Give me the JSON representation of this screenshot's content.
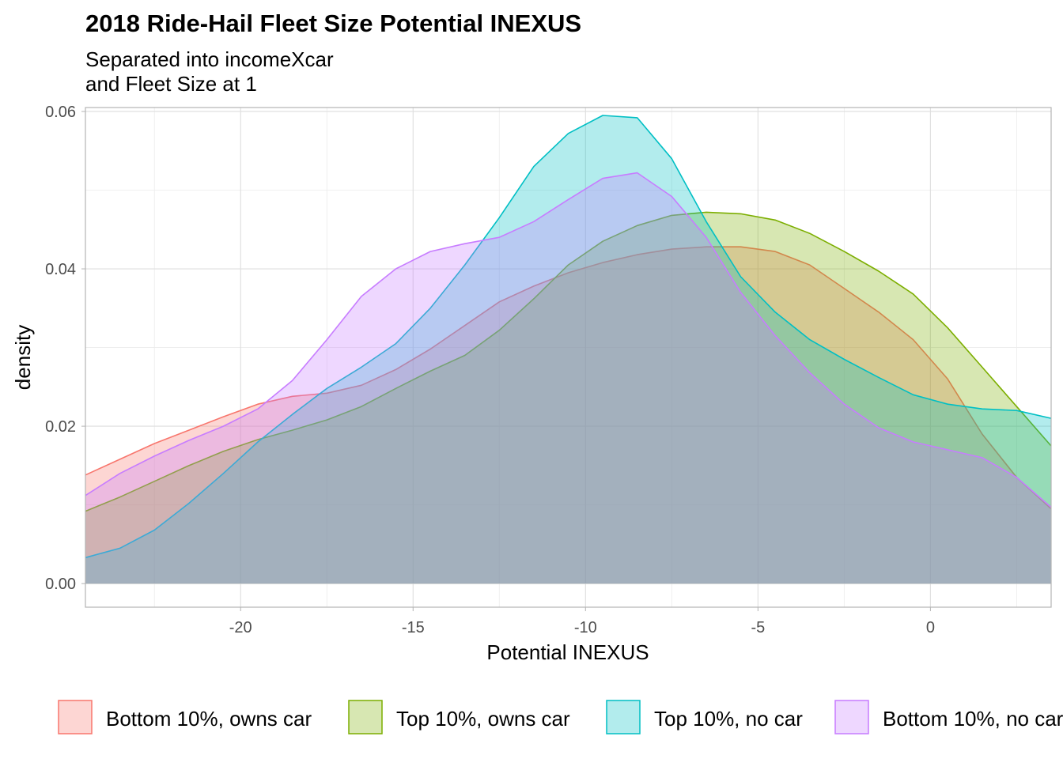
{
  "chart_data": {
    "type": "area",
    "title": "2018 Ride-Hail Fleet Size Potential INEXUS",
    "subtitle": [
      "Separated into incomeXcar",
      "and Fleet Size at 1"
    ],
    "xlabel": "Potential INEXUS",
    "ylabel": "density",
    "xlim": [
      -24.5,
      3.5
    ],
    "ylim": [
      -0.003,
      0.0605
    ],
    "x_ticks": [
      -20,
      -15,
      -10,
      -5,
      0
    ],
    "x_tick_labels": [
      "-20",
      "-15",
      "-10",
      "-5",
      "0"
    ],
    "y_ticks": [
      0,
      0.02,
      0.04,
      0.06
    ],
    "y_tick_labels": [
      "0.00",
      "0.02",
      "0.04",
      "0.06"
    ],
    "grid": true,
    "legend_position": "bottom",
    "series": [
      {
        "name": "Bottom 10%, owns car",
        "color": "#F8766D",
        "x": [
          -24.5,
          -23.5,
          -22.5,
          -21.5,
          -20.5,
          -19.5,
          -18.5,
          -17.5,
          -16.5,
          -15.5,
          -14.5,
          -13.5,
          -12.5,
          -11.5,
          -10.5,
          -9.5,
          -8.5,
          -7.5,
          -6.5,
          -5.5,
          -4.5,
          -3.5,
          -2.5,
          -1.5,
          -0.5,
          0.5,
          1.5,
          2.5,
          3.5
        ],
        "values": [
          0.0138,
          0.0158,
          0.0178,
          0.0195,
          0.0212,
          0.0228,
          0.0238,
          0.0242,
          0.0252,
          0.0272,
          0.0298,
          0.0328,
          0.0358,
          0.0378,
          0.0395,
          0.0408,
          0.0418,
          0.0425,
          0.0428,
          0.0428,
          0.0422,
          0.0405,
          0.0375,
          0.0345,
          0.031,
          0.026,
          0.019,
          0.0135,
          0.0095
        ]
      },
      {
        "name": "Top 10%, owns car",
        "color": "#7CAE00",
        "x": [
          -24.5,
          -23.5,
          -22.5,
          -21.5,
          -20.5,
          -19.5,
          -18.5,
          -17.5,
          -16.5,
          -15.5,
          -14.5,
          -13.5,
          -12.5,
          -11.5,
          -10.5,
          -9.5,
          -8.5,
          -7.5,
          -6.5,
          -5.5,
          -4.5,
          -3.5,
          -2.5,
          -1.5,
          -0.5,
          0.5,
          1.5,
          2.5,
          3.5
        ],
        "values": [
          0.0092,
          0.011,
          0.013,
          0.015,
          0.0168,
          0.0183,
          0.0195,
          0.0208,
          0.0225,
          0.0248,
          0.027,
          0.029,
          0.0322,
          0.0362,
          0.0405,
          0.0435,
          0.0455,
          0.0468,
          0.0472,
          0.047,
          0.0462,
          0.0445,
          0.0422,
          0.0397,
          0.0368,
          0.0325,
          0.0275,
          0.0225,
          0.0175
        ]
      },
      {
        "name": "Top 10%, no car",
        "color": "#00BFC4",
        "x": [
          -24.5,
          -23.5,
          -22.5,
          -21.5,
          -20.5,
          -19.5,
          -18.5,
          -17.5,
          -16.5,
          -15.5,
          -14.5,
          -13.5,
          -12.5,
          -11.5,
          -10.5,
          -9.5,
          -8.5,
          -7.5,
          -6.5,
          -5.5,
          -4.5,
          -3.5,
          -2.5,
          -1.5,
          -0.5,
          0.5,
          1.5,
          2.5,
          3.5
        ],
        "values": [
          0.0033,
          0.0045,
          0.0068,
          0.0102,
          0.014,
          0.018,
          0.0215,
          0.0248,
          0.0275,
          0.0305,
          0.035,
          0.0405,
          0.0465,
          0.053,
          0.0572,
          0.0595,
          0.0592,
          0.054,
          0.046,
          0.039,
          0.0345,
          0.031,
          0.0285,
          0.0262,
          0.024,
          0.0228,
          0.0222,
          0.022,
          0.021
        ]
      },
      {
        "name": "Bottom 10%, no car",
        "color": "#C77CFF",
        "x": [
          -24.5,
          -23.5,
          -22.5,
          -21.5,
          -20.5,
          -19.5,
          -18.5,
          -17.5,
          -16.5,
          -15.5,
          -14.5,
          -13.5,
          -12.5,
          -11.5,
          -10.5,
          -9.5,
          -8.5,
          -7.5,
          -6.5,
          -5.5,
          -4.5,
          -3.5,
          -2.5,
          -1.5,
          -0.5,
          0.5,
          1.5,
          2.5,
          3.5
        ],
        "values": [
          0.0112,
          0.014,
          0.0162,
          0.0182,
          0.02,
          0.0222,
          0.0258,
          0.031,
          0.0365,
          0.04,
          0.0422,
          0.0432,
          0.044,
          0.046,
          0.0488,
          0.0515,
          0.0522,
          0.0492,
          0.044,
          0.037,
          0.0315,
          0.0268,
          0.0228,
          0.0198,
          0.018,
          0.017,
          0.016,
          0.0135,
          0.0097
        ]
      }
    ]
  }
}
